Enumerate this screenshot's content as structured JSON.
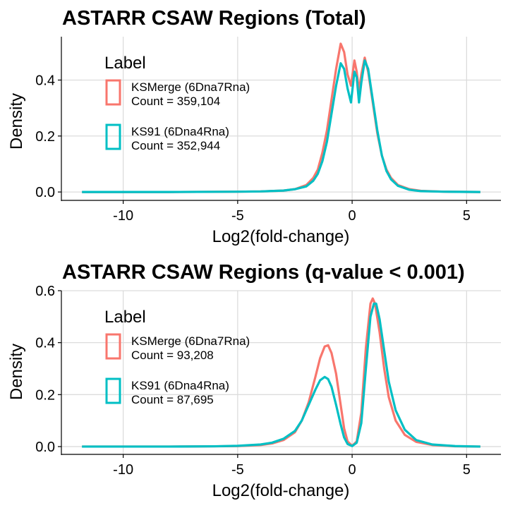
{
  "chart_data": [
    {
      "type": "line",
      "title": "ASTARR CSAW Regions (Total)",
      "xlabel": "Log2(fold-change)",
      "ylabel": "Density",
      "xlim": [
        -12.7,
        6.5
      ],
      "ylim": [
        -0.03,
        0.555
      ],
      "xticks": [
        -10,
        -5,
        0,
        5
      ],
      "xtick_labels": [
        "-10",
        "-5",
        "0",
        "5"
      ],
      "yticks": [
        0.0,
        0.2,
        0.4
      ],
      "ytick_labels": [
        "0.0",
        "0.2",
        "0.4"
      ],
      "grid": true,
      "legend": {
        "title": "Label",
        "placement": "top-left",
        "entries": [
          {
            "line1": "KSMerge (6Dna7Rna)",
            "line2": "Count = 359,104",
            "color": "#F8766D"
          },
          {
            "line1": "KS91 (6Dna4Rna)",
            "line2": "Count = 352,944",
            "color": "#00BFC4"
          }
        ]
      },
      "series": [
        {
          "name": "KSMerge (6Dna7Rna)",
          "color": "#F8766D",
          "points": [
            [
              -11.8,
              0
            ],
            [
              -8,
              0
            ],
            [
              -5,
              0.001
            ],
            [
              -4,
              0.002
            ],
            [
              -3,
              0.005
            ],
            [
              -2.5,
              0.01
            ],
            [
              -2,
              0.025
            ],
            [
              -1.7,
              0.05
            ],
            [
              -1.5,
              0.08
            ],
            [
              -1.3,
              0.14
            ],
            [
              -1.1,
              0.22
            ],
            [
              -0.9,
              0.33
            ],
            [
              -0.7,
              0.44
            ],
            [
              -0.5,
              0.53
            ],
            [
              -0.35,
              0.5
            ],
            [
              -0.2,
              0.42
            ],
            [
              -0.05,
              0.38
            ],
            [
              0.1,
              0.47
            ],
            [
              0.2,
              0.43
            ],
            [
              0.3,
              0.36
            ],
            [
              0.4,
              0.42
            ],
            [
              0.55,
              0.48
            ],
            [
              0.7,
              0.43
            ],
            [
              0.9,
              0.32
            ],
            [
              1.1,
              0.21
            ],
            [
              1.3,
              0.13
            ],
            [
              1.5,
              0.08
            ],
            [
              1.7,
              0.05
            ],
            [
              2,
              0.025
            ],
            [
              2.5,
              0.01
            ],
            [
              3,
              0.004
            ],
            [
              4,
              0.001
            ],
            [
              5.6,
              0
            ]
          ]
        },
        {
          "name": "KS91 (6Dna4Rna)",
          "color": "#00BFC4",
          "points": [
            [
              -11.8,
              0
            ],
            [
              -8,
              0
            ],
            [
              -5,
              0.001
            ],
            [
              -4,
              0.002
            ],
            [
              -3,
              0.005
            ],
            [
              -2.5,
              0.01
            ],
            [
              -2,
              0.02
            ],
            [
              -1.7,
              0.04
            ],
            [
              -1.5,
              0.065
            ],
            [
              -1.3,
              0.11
            ],
            [
              -1.1,
              0.18
            ],
            [
              -0.9,
              0.28
            ],
            [
              -0.7,
              0.38
            ],
            [
              -0.5,
              0.46
            ],
            [
              -0.35,
              0.44
            ],
            [
              -0.2,
              0.37
            ],
            [
              -0.05,
              0.32
            ],
            [
              0.1,
              0.43
            ],
            [
              0.2,
              0.41
            ],
            [
              0.3,
              0.32
            ],
            [
              0.4,
              0.39
            ],
            [
              0.55,
              0.47
            ],
            [
              0.7,
              0.44
            ],
            [
              0.9,
              0.33
            ],
            [
              1.1,
              0.22
            ],
            [
              1.3,
              0.13
            ],
            [
              1.5,
              0.075
            ],
            [
              1.7,
              0.045
            ],
            [
              2,
              0.022
            ],
            [
              2.5,
              0.008
            ],
            [
              3,
              0.003
            ],
            [
              4,
              0.001
            ],
            [
              5.6,
              0
            ]
          ]
        }
      ]
    },
    {
      "type": "line",
      "title": "ASTARR CSAW Regions (q-value < 0.001)",
      "xlabel": "Log2(fold-change)",
      "ylabel": "Density",
      "xlim": [
        -12.7,
        6.5
      ],
      "ylim": [
        -0.03,
        0.6
      ],
      "xticks": [
        -10,
        -5,
        0,
        5
      ],
      "xtick_labels": [
        "-10",
        "-5",
        "0",
        "5"
      ],
      "yticks": [
        0.0,
        0.2,
        0.4,
        0.6
      ],
      "ytick_labels": [
        "0.0",
        "0.2",
        "0.4",
        "0.6"
      ],
      "grid": true,
      "legend": {
        "title": "Label",
        "placement": "top-left",
        "entries": [
          {
            "line1": "KSMerge (6Dna7Rna)",
            "line2": "Count = 93,208",
            "color": "#F8766D"
          },
          {
            "line1": "KS91 (6Dna4Rna)",
            "line2": "Count = 87,695",
            "color": "#00BFC4"
          }
        ]
      },
      "series": [
        {
          "name": "KSMerge (6Dna7Rna)",
          "color": "#F8766D",
          "points": [
            [
              -11.8,
              0
            ],
            [
              -8,
              0
            ],
            [
              -6,
              0.001
            ],
            [
              -5,
              0.002
            ],
            [
              -4,
              0.006
            ],
            [
              -3.5,
              0.012
            ],
            [
              -3,
              0.025
            ],
            [
              -2.5,
              0.055
            ],
            [
              -2.2,
              0.1
            ],
            [
              -1.9,
              0.17
            ],
            [
              -1.6,
              0.27
            ],
            [
              -1.4,
              0.34
            ],
            [
              -1.2,
              0.385
            ],
            [
              -1.05,
              0.39
            ],
            [
              -0.9,
              0.36
            ],
            [
              -0.7,
              0.28
            ],
            [
              -0.5,
              0.16
            ],
            [
              -0.35,
              0.07
            ],
            [
              -0.2,
              0.02
            ],
            [
              0,
              0.003
            ],
            [
              0.2,
              0.02
            ],
            [
              0.4,
              0.13
            ],
            [
              0.6,
              0.38
            ],
            [
              0.8,
              0.55
            ],
            [
              0.9,
              0.57
            ],
            [
              1.0,
              0.55
            ],
            [
              1.2,
              0.44
            ],
            [
              1.4,
              0.3
            ],
            [
              1.6,
              0.19
            ],
            [
              1.9,
              0.1
            ],
            [
              2.3,
              0.045
            ],
            [
              2.8,
              0.018
            ],
            [
              3.5,
              0.006
            ],
            [
              4.5,
              0.001
            ],
            [
              5.6,
              0
            ]
          ]
        },
        {
          "name": "KS91 (6Dna4Rna)",
          "color": "#00BFC4",
          "points": [
            [
              -11.8,
              0
            ],
            [
              -8,
              0
            ],
            [
              -6,
              0.001
            ],
            [
              -5,
              0.003
            ],
            [
              -4,
              0.008
            ],
            [
              -3.5,
              0.015
            ],
            [
              -3,
              0.03
            ],
            [
              -2.5,
              0.06
            ],
            [
              -2.2,
              0.1
            ],
            [
              -1.9,
              0.16
            ],
            [
              -1.6,
              0.22
            ],
            [
              -1.4,
              0.255
            ],
            [
              -1.2,
              0.268
            ],
            [
              -1.05,
              0.26
            ],
            [
              -0.9,
              0.23
            ],
            [
              -0.7,
              0.16
            ],
            [
              -0.5,
              0.085
            ],
            [
              -0.35,
              0.035
            ],
            [
              -0.2,
              0.01
            ],
            [
              0,
              0.002
            ],
            [
              0.2,
              0.015
            ],
            [
              0.4,
              0.09
            ],
            [
              0.6,
              0.3
            ],
            [
              0.8,
              0.5
            ],
            [
              0.95,
              0.55
            ],
            [
              1.05,
              0.55
            ],
            [
              1.2,
              0.49
            ],
            [
              1.4,
              0.37
            ],
            [
              1.6,
              0.25
            ],
            [
              1.9,
              0.14
            ],
            [
              2.3,
              0.065
            ],
            [
              2.8,
              0.025
            ],
            [
              3.5,
              0.008
            ],
            [
              4.5,
              0.002
            ],
            [
              5.6,
              0
            ]
          ]
        }
      ]
    }
  ]
}
